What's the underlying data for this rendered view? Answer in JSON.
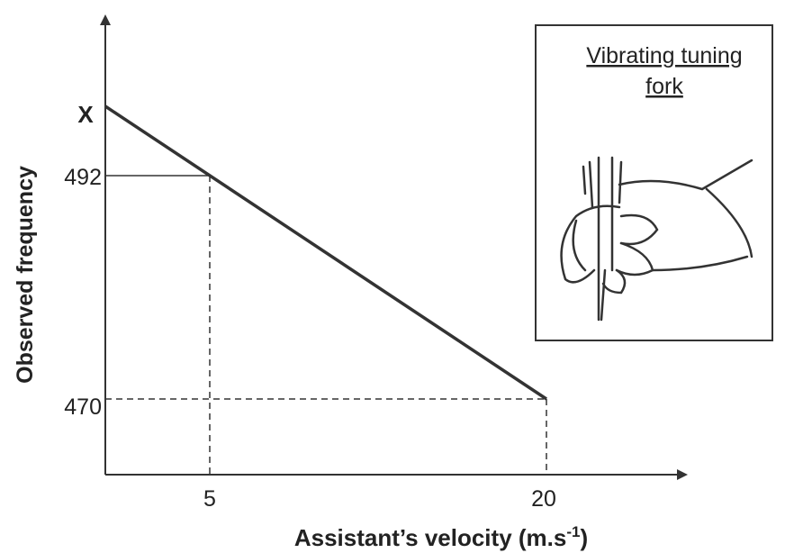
{
  "axes": {
    "y_label": "Observed frequency",
    "x_label": "Assistant’s velocity (m.s",
    "x_label_sup": "-1",
    "x_label_end": ")"
  },
  "y_ticks": [
    "X",
    "492",
    "470"
  ],
  "x_ticks": [
    "5",
    "20"
  ],
  "inset": {
    "caption": [
      "Vibrating tuning",
      "fork"
    ]
  }
}
